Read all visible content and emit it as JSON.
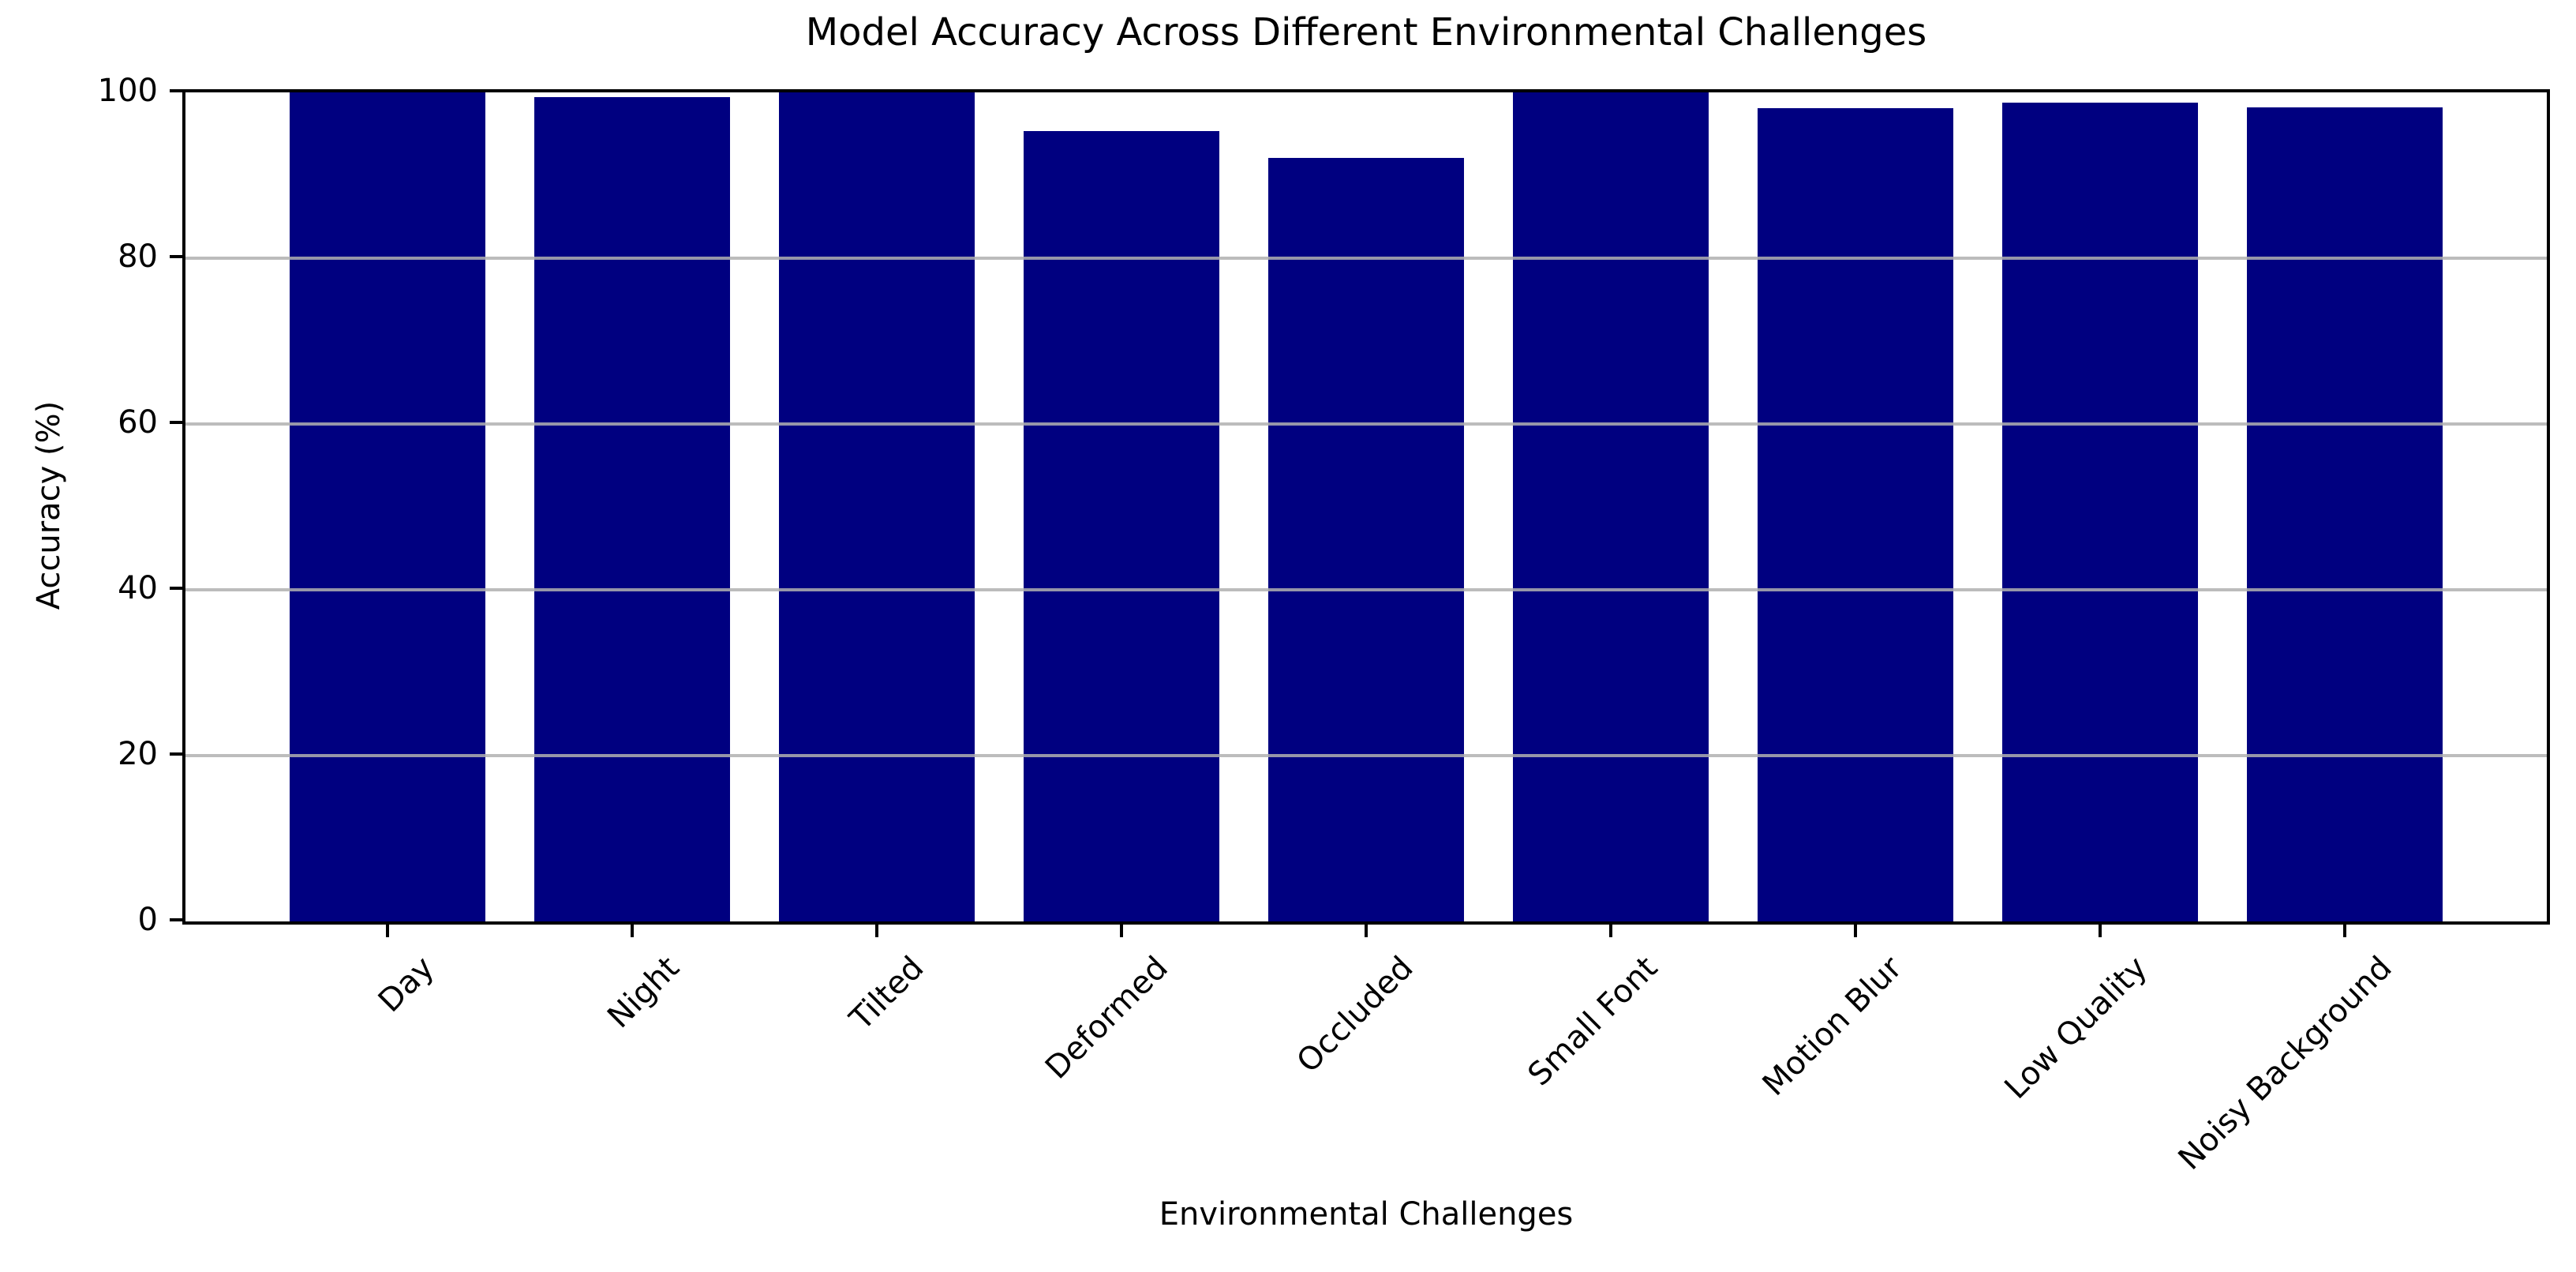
{
  "chart_data": {
    "type": "bar",
    "title": "Model Accuracy Across Different Environmental Challenges",
    "xlabel": "Environmental Challenges",
    "ylabel": "Accuracy (%)",
    "categories": [
      "Day",
      "Night",
      "Tilted",
      "Deformed",
      "Occluded",
      "Small Font",
      "Motion Blur",
      "Low Quality",
      "Noisy Background"
    ],
    "values": [
      100,
      99.4,
      100,
      95.3,
      92.1,
      100,
      98.1,
      98.8,
      98.2
    ],
    "ylim": [
      0,
      100
    ],
    "yticks": [
      0,
      20,
      40,
      60,
      80,
      100
    ],
    "ytick_labels": [
      "0",
      "20",
      "40",
      "60",
      "80",
      "100"
    ],
    "xtick_label_rotation_deg": 45,
    "grid": "horizontal",
    "grid_over_bars": true,
    "bar_color": "#000080",
    "gridline_color": "#b0b0b0",
    "spine_color": "#000000",
    "text_color": "#000000",
    "background": "#ffffff",
    "legend": "none"
  }
}
